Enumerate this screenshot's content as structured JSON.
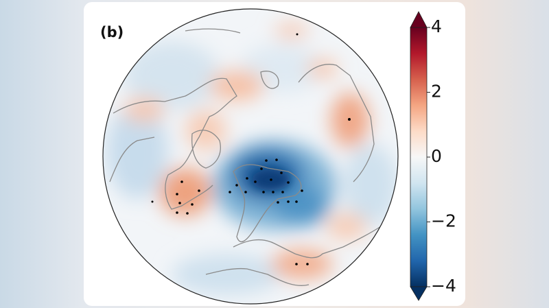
{
  "panel_label": "(b)",
  "colorbar": {
    "range": [
      -4,
      4
    ],
    "ticks": [
      4,
      2,
      0,
      {
        "value": -2,
        "label": "−2"
      },
      {
        "value": -4,
        "label": "−4"
      }
    ],
    "colors": [
      "#053061",
      "#2166ac",
      "#4393c3",
      "#92c5de",
      "#d1e5f0",
      "#f7f7f7",
      "#fddbc7",
      "#f4a582",
      "#d6604d",
      "#b2182b",
      "#67001f"
    ]
  }
}
